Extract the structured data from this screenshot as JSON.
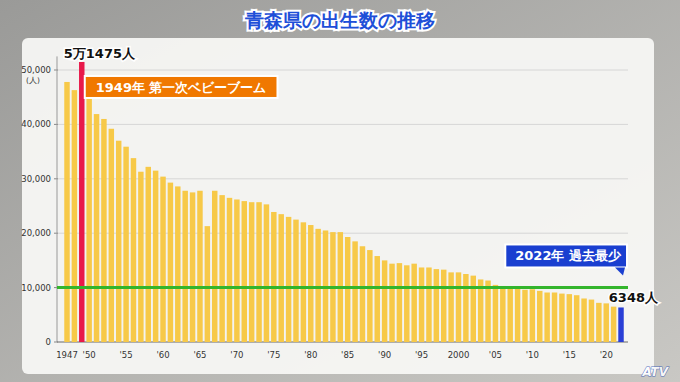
{
  "chart_data": {
    "type": "bar",
    "title": "青森県の出生数の推移",
    "y_label": "(人)",
    "categories": [
      "1947",
      null,
      null,
      "'50",
      null,
      null,
      null,
      null,
      "'55",
      null,
      null,
      null,
      null,
      "'60",
      null,
      null,
      null,
      null,
      "'65",
      null,
      null,
      null,
      null,
      "'70",
      null,
      null,
      null,
      null,
      "'75",
      null,
      null,
      null,
      null,
      "'80",
      null,
      null,
      null,
      null,
      "'85",
      null,
      null,
      null,
      null,
      "'90",
      null,
      null,
      null,
      null,
      "'95",
      null,
      null,
      null,
      null,
      "2000",
      null,
      null,
      null,
      null,
      "'05",
      null,
      null,
      null,
      null,
      "'10",
      null,
      null,
      null,
      null,
      "'15",
      null,
      null,
      null,
      null,
      "'20",
      null,
      null
    ],
    "values": [
      47800,
      46300,
      51475,
      45700,
      41900,
      41000,
      39200,
      37000,
      35900,
      33800,
      31300,
      32200,
      31500,
      30400,
      29300,
      28600,
      27800,
      27500,
      27800,
      21300,
      27800,
      27000,
      26500,
      26200,
      25900,
      25700,
      25700,
      25300,
      23900,
      23500,
      23000,
      22500,
      22000,
      21500,
      20800,
      20500,
      20200,
      20200,
      19300,
      18500,
      17600,
      16900,
      15800,
      15000,
      14400,
      14500,
      14100,
      14400,
      13700,
      13700,
      13400,
      13300,
      12800,
      12800,
      12500,
      12200,
      11500,
      11300,
      10500,
      10300,
      10000,
      9900,
      9600,
      9700,
      9400,
      9100,
      9100,
      8900,
      8800,
      8600,
      8000,
      7800,
      7200,
      7100,
      6500,
      6348
    ],
    "colors": [
      "#f7c948",
      "#f7c948",
      "#e8194a",
      "#f7c948",
      "#f7c948",
      "#f7c948",
      "#f7c948",
      "#f7c948",
      "#f7c948",
      "#f7c948",
      "#f7c948",
      "#f7c948",
      "#f7c948",
      "#f7c948",
      "#f7c948",
      "#f7c948",
      "#f7c948",
      "#f7c948",
      "#f7c948",
      "#f7c948",
      "#f7c948",
      "#f7c948",
      "#f7c948",
      "#f7c948",
      "#f7c948",
      "#f7c948",
      "#f7c948",
      "#f7c948",
      "#f7c948",
      "#f7c948",
      "#f7c948",
      "#f7c948",
      "#f7c948",
      "#f7c948",
      "#f7c948",
      "#f7c948",
      "#f7c948",
      "#f7c948",
      "#f7c948",
      "#f7c948",
      "#f7c948",
      "#f7c948",
      "#f7c948",
      "#f7c948",
      "#f7c948",
      "#f7c948",
      "#f7c948",
      "#f7c948",
      "#f7c948",
      "#f7c948",
      "#f7c948",
      "#f7c948",
      "#f7c948",
      "#f7c948",
      "#f7c948",
      "#f7c948",
      "#f7c948",
      "#f7c948",
      "#f7c948",
      "#f7c948",
      "#f7c948",
      "#f7c948",
      "#f7c948",
      "#f7c948",
      "#f7c948",
      "#f7c948",
      "#f7c948",
      "#f7c948",
      "#f7c948",
      "#f7c948",
      "#f7c948",
      "#f7c948",
      "#f7c948",
      "#f7c948",
      "#f7c948",
      "#2a3fd6"
    ],
    "ylim": [
      0,
      52500
    ],
    "yticks": [
      0,
      {
        "value": 10000,
        "label": "10,000"
      },
      {
        "value": 20000,
        "label": "20,000"
      },
      {
        "value": 30000,
        "label": "30,000"
      },
      {
        "value": 40000,
        "label": "40,000"
      },
      {
        "value": 50000,
        "label": "50,000"
      }
    ],
    "grid": true,
    "reference_line": 10000,
    "peak_label": "5万1475人",
    "peak_note": "1949年 第一次ベビーブーム",
    "last_label": "6348人",
    "last_note": "2022年 過去最少",
    "source": "ATV"
  }
}
